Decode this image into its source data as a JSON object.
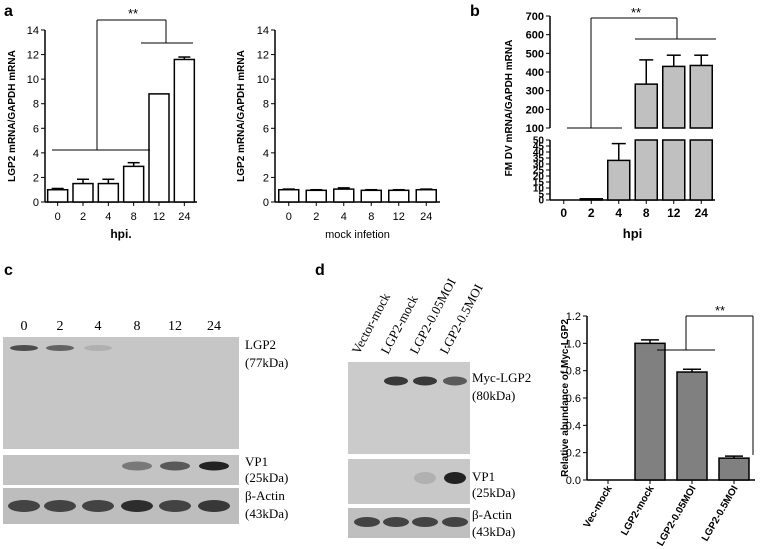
{
  "panel_labels": {
    "a": "a",
    "b": "b",
    "c": "c",
    "d": "d"
  },
  "chart_data": [
    {
      "panel": "a-left",
      "type": "bar",
      "categories": [
        "0",
        "2",
        "4",
        "8",
        "12",
        "24"
      ],
      "values": [
        1.0,
        1.5,
        1.5,
        2.9,
        8.8,
        11.6
      ],
      "errors": [
        0.1,
        0.35,
        0.35,
        0.3,
        0.0,
        0.2
      ],
      "xlabel": "hpi.",
      "ylabel": "LGP2 mRNA/GAPDH mRNA",
      "ylim": [
        0,
        14
      ],
      "yticks": [
        "0",
        "2",
        "4",
        "6",
        "8",
        "10",
        "12",
        "14"
      ],
      "annotation": "**",
      "grid": false
    },
    {
      "panel": "a-right",
      "type": "bar",
      "categories": [
        "0",
        "2",
        "4",
        "8",
        "12",
        "24"
      ],
      "values": [
        1.0,
        0.95,
        1.05,
        0.95,
        0.95,
        1.0
      ],
      "errors": [
        0.05,
        0.05,
        0.1,
        0.05,
        0.05,
        0.05
      ],
      "xlabel": "mock infetion",
      "ylabel": "LGP2 mRNA/GAPDH mRNA",
      "ylim": [
        0,
        14
      ],
      "yticks": [
        "0",
        "2",
        "4",
        "6",
        "8",
        "10",
        "12",
        "14"
      ],
      "grid": false
    },
    {
      "panel": "b",
      "type": "bar",
      "categories": [
        "0",
        "2",
        "4",
        "8",
        "12",
        "24"
      ],
      "values": [
        0,
        1,
        33,
        335,
        430,
        435
      ],
      "errors": [
        0,
        0,
        14,
        130,
        60,
        55
      ],
      "xlabel": "hpi",
      "ylabel": "FM DV mRNA/GAPDH mRNA",
      "ylim": [
        0,
        700
      ],
      "axis_break": {
        "lower": [
          0,
          50
        ],
        "upper": [
          100,
          700
        ]
      },
      "yticks_lower": [
        "0",
        "5",
        "10",
        "15",
        "20",
        "25",
        "30",
        "35",
        "40",
        "45",
        "50"
      ],
      "yticks_upper": [
        "100",
        "200",
        "300",
        "400",
        "500",
        "600",
        "700"
      ],
      "annotation": "**",
      "grid": false
    },
    {
      "panel": "d-right",
      "type": "bar",
      "categories": [
        "Vec-mock",
        "LGP2-mock",
        "LGP2-0.05MOI",
        "LGP2-0.5MOI"
      ],
      "values": [
        0,
        1.0,
        0.79,
        0.16
      ],
      "errors": [
        0,
        0.025,
        0.02,
        0.015
      ],
      "ylabel": "Relative abundance of Myc-LGP2",
      "ylim": [
        0,
        1.2
      ],
      "yticks": [
        "0.0",
        "0.2",
        "0.4",
        "0.6",
        "0.8",
        "1.0",
        "1.2"
      ],
      "annotation": "**",
      "grid": false
    }
  ],
  "blot_c": {
    "lane_labels": [
      "0",
      "2",
      "4",
      "8",
      "12",
      "24"
    ],
    "band_labels": [
      {
        "name": "LGP2",
        "kda": "(77kDa)"
      },
      {
        "name": "VP1",
        "kda": "(25kDa)"
      },
      {
        "name": "β-Actin",
        "kda": "(43kDa)"
      }
    ],
    "lgp2_intensity": [
      0.8,
      0.7,
      0.35,
      0,
      0,
      0
    ],
    "vp1_intensity": [
      0,
      0,
      0,
      0.6,
      0.75,
      1.0
    ],
    "actin_intensity": [
      0.85,
      0.85,
      0.85,
      0.95,
      0.85,
      0.9
    ]
  },
  "blot_d": {
    "lane_labels": [
      "Vector-mock",
      "LGP2-mock",
      "LGP2-0.05MOI",
      "LGP2-0.5MOI"
    ],
    "band_labels": [
      {
        "name": "Myc-LGP2",
        "kda": "(80kDa)"
      },
      {
        "name": "VP1",
        "kda": "(25kDa)"
      },
      {
        "name": "β-Actin",
        "kda": "(43kDa)"
      }
    ],
    "myc_intensity": [
      0,
      0.9,
      0.9,
      0.75
    ],
    "vp1_intensity": [
      0,
      0,
      0.35,
      1.0
    ],
    "actin_intensity": [
      0.85,
      0.85,
      0.85,
      0.85
    ]
  }
}
